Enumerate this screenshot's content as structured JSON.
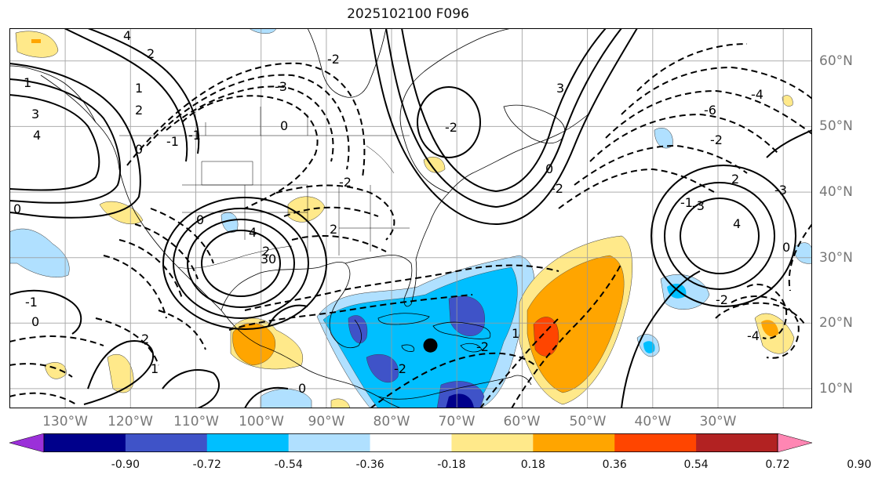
{
  "title": "2025102100 F096",
  "map": {
    "projection": "cylindrical",
    "lon_range": [
      -140,
      -17
    ],
    "lat_range": [
      7,
      65
    ],
    "lon_labels": [
      "130°W",
      "120°W",
      "110°W",
      "100°W",
      "90°W",
      "80°W",
      "70°W",
      "60°W",
      "50°W",
      "40°W",
      "30°W"
    ],
    "lat_labels": [
      "60°N",
      "50°N",
      "40°N",
      "30°N",
      "20°N",
      "10°N"
    ],
    "marker": {
      "name": "storm-position-dot",
      "lon": -75.5,
      "lat": 16.6,
      "color": "#000000"
    },
    "contour_line_color": "#000000",
    "contour_labels": [
      "4",
      "2",
      "1",
      "3",
      "4",
      "0",
      "-1",
      "0",
      "2",
      "1",
      "3",
      "0",
      "2",
      "4",
      "0",
      "-1",
      "-1",
      "1",
      "2",
      "0",
      "-2",
      "-3",
      "0",
      "2",
      "-2",
      "-2",
      "-2",
      "0",
      "-6",
      "-4",
      "-2",
      "-3",
      "0",
      "-4",
      "-2",
      "-3",
      "2",
      "-1",
      "4",
      "3",
      "0",
      "-2",
      "1",
      "-2"
    ],
    "shading_colors": [
      "#9b30d9",
      "#00008b",
      "#3f53c8",
      "#00bfff",
      "#b0e0ff",
      "#ffffff",
      "#ffe98a",
      "#ffa500",
      "#ff4500",
      "#b22222",
      "#ff86b3"
    ]
  },
  "colorbar": {
    "labels": [
      "-0.90",
      "-0.72",
      "-0.54",
      "-0.36",
      "-0.18",
      "0.18",
      "0.36",
      "0.54",
      "0.72",
      "0.90"
    ],
    "colors": [
      "#9b30d9",
      "#00008b",
      "#3f53c8",
      "#00bfff",
      "#b0e0ff",
      "#ffffff",
      "#ffe98a",
      "#ffa500",
      "#ff4500",
      "#b22222",
      "#ff86b3"
    ]
  }
}
